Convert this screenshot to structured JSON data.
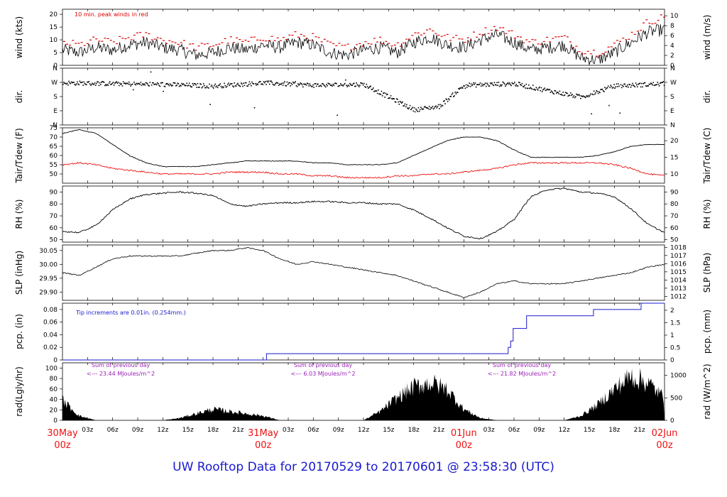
{
  "footer_title": "UW Rooftop Data for 20170529  to  20170601 @ 23:58:30  (UTC)",
  "time_axis": {
    "hour_ticks": [
      "03z",
      "06z",
      "09z",
      "12z",
      "15z",
      "18z",
      "21z",
      "03z",
      "06z",
      "09z",
      "12z",
      "15z",
      "18z",
      "21z",
      "03z",
      "06z",
      "09z",
      "12z",
      "15z",
      "18z",
      "21z"
    ],
    "days": [
      {
        "date": "30May",
        "hour": "00z"
      },
      {
        "date": "31May",
        "hour": "00z"
      },
      {
        "date": "01Jun",
        "hour": "00z"
      },
      {
        "date": "02Jun",
        "hour": "00z"
      }
    ]
  },
  "colors": {
    "line": "#000000",
    "peak": "#dd0000",
    "dew": "#ee1111",
    "precip": "#1a1acc",
    "annot_precip": "#1a1acc",
    "annot_rad": "#9a1fb5",
    "title": "#1a1ad0",
    "days": "#ee1111"
  },
  "panels": {
    "wind": {
      "ylabel_left": "wind (kts)",
      "ylabel_right": "wind (m/s)",
      "ticks_left": [
        "0",
        "5",
        "10",
        "15",
        "20"
      ],
      "ticks_right": [
        "0",
        "2",
        "4",
        "6",
        "8",
        "10"
      ],
      "note": "10 min. peak winds in red"
    },
    "dir": {
      "ylabel_left": "dir.",
      "ylabel_right": "dir.",
      "ticks": [
        "N",
        "E",
        "S",
        "W",
        "N"
      ]
    },
    "temp": {
      "ylabel_left": "Tair/Tdew (F)",
      "ylabel_right": "Tair/Tdew (C)",
      "ticks_left": [
        "50",
        "55",
        "60",
        "65",
        "70",
        "75"
      ],
      "ticks_right": [
        "10",
        "15",
        "20"
      ]
    },
    "rh": {
      "ylabel_left": "RH (%)",
      "ylabel_right": "RH (%)",
      "ticks": [
        "50",
        "60",
        "70",
        "80",
        "90"
      ]
    },
    "slp": {
      "ylabel_left": "SLP (inHg)",
      "ylabel_right": "SLP (hPa)",
      "ticks_left": [
        "29.90",
        "29.95",
        "30.00",
        "30.05"
      ],
      "ticks_right": [
        "1012",
        "1013",
        "1014",
        "1015",
        "1016",
        "1017",
        "1018"
      ]
    },
    "pcp": {
      "ylabel_left": "pcp. (in)",
      "ylabel_right": "pcp. (mm)",
      "ticks_left": [
        "0",
        "0.02",
        "0.04",
        "0.06",
        "0.08"
      ],
      "ticks_right": [
        "0",
        "0.5",
        "1",
        "1.5",
        "2"
      ],
      "note": "Tip increments are 0.01in. (0.254mm.)"
    },
    "rad": {
      "ylabel_left": "rad(Lgly/hr)",
      "ylabel_right": "rad (W/m^2)",
      "ticks_left": [
        "0",
        "20",
        "40",
        "60",
        "80",
        "100"
      ],
      "ticks_right": [
        "0",
        "500",
        "1000"
      ],
      "sums": [
        {
          "label": "Sum of previous day",
          "value": "<--- 23.44 MJoules/m^2"
        },
        {
          "label": "Sum of previous day",
          "value": "<--- 6.03 MJoules/m^2"
        },
        {
          "label": "Sum of previous day",
          "value": "<--- 21.82 MJoules/m^2"
        }
      ]
    }
  },
  "chart_data": [
    {
      "type": "line",
      "title": "",
      "ylabel": "wind (kts)",
      "y2label": "wind (m/s)",
      "ylim": [
        0,
        22
      ],
      "x_unit": "hours since 30May 00z",
      "series": [
        {
          "name": "",
          "x": [
            0,
            2,
            4,
            6,
            8,
            10,
            12,
            14,
            16,
            18,
            20,
            22,
            24,
            26,
            28,
            30,
            32,
            34,
            36,
            38,
            40,
            42,
            44,
            46,
            48,
            50,
            52,
            54,
            56,
            58,
            60,
            62,
            64,
            66,
            68,
            70,
            72
          ],
          "values": [
            6,
            5,
            7,
            6,
            8,
            9,
            7,
            6,
            4,
            5,
            7,
            6,
            8,
            7,
            9,
            8,
            5,
            4,
            6,
            7,
            5,
            9,
            11,
            8,
            7,
            10,
            12,
            9,
            6,
            7,
            8,
            3,
            2,
            5,
            9,
            13,
            14
          ]
        },
        {
          "name": "10 min. peak winds in red",
          "x": [
            0,
            2,
            4,
            6,
            8,
            10,
            12,
            14,
            16,
            18,
            20,
            22,
            24,
            26,
            28,
            30,
            32,
            34,
            36,
            38,
            40,
            42,
            44,
            46,
            48,
            50,
            52,
            54,
            56,
            58,
            60,
            62,
            64,
            66,
            68,
            70,
            72
          ],
          "values": [
            9,
            8,
            10,
            9,
            11,
            12,
            10,
            9,
            7,
            8,
            10,
            9,
            11,
            10,
            12,
            11,
            8,
            7,
            9,
            10,
            8,
            12,
            14,
            11,
            10,
            13,
            15,
            12,
            9,
            10,
            11,
            6,
            5,
            8,
            12,
            17,
            19
          ]
        }
      ]
    },
    {
      "type": "scatter",
      "title": "",
      "ylabel": "dir.",
      "ytick_labels": [
        "N",
        "E",
        "S",
        "W",
        "N"
      ],
      "note": "mostly W to S, excursions toward E near 20-22z 31May",
      "series": [
        {
          "name": "",
          "x": [
            0,
            6,
            12,
            18,
            24,
            30,
            36,
            42,
            45,
            48,
            54,
            60,
            62,
            66,
            72
          ],
          "values": [
            270,
            265,
            260,
            250,
            270,
            255,
            260,
            100,
            120,
            255,
            265,
            200,
            180,
            250,
            265
          ]
        }
      ]
    },
    {
      "type": "line",
      "title": "",
      "ylabel": "Tair/Tdew (F)",
      "y2label": "Tair/Tdew (C)",
      "ylim": [
        45,
        75
      ],
      "series": [
        {
          "name": "",
          "x": [
            0,
            2,
            4,
            6,
            8,
            10,
            12,
            14,
            16,
            18,
            20,
            22,
            24,
            26,
            28,
            30,
            32,
            34,
            36,
            38,
            40,
            42,
            44,
            46,
            48,
            50,
            52,
            54,
            56,
            58,
            60,
            62,
            64,
            66,
            68,
            70,
            72
          ],
          "values": [
            72,
            74,
            72,
            66,
            60,
            56,
            54,
            54,
            54,
            55,
            56,
            57,
            57,
            57,
            57,
            56,
            56,
            55,
            55,
            55,
            56,
            60,
            64,
            68,
            70,
            70,
            68,
            63,
            59,
            59,
            59,
            59,
            60,
            62,
            65,
            66,
            66
          ]
        },
        {
          "name": "",
          "x": [
            0,
            2,
            4,
            6,
            8,
            10,
            12,
            14,
            16,
            18,
            20,
            22,
            24,
            26,
            28,
            30,
            32,
            34,
            36,
            38,
            40,
            42,
            44,
            46,
            48,
            50,
            52,
            54,
            56,
            58,
            60,
            62,
            64,
            66,
            68,
            70,
            72
          ],
          "values": [
            55,
            56,
            55,
            53,
            52,
            51,
            50,
            50,
            50,
            50,
            51,
            51,
            51,
            50,
            50,
            49,
            49,
            48,
            48,
            48,
            49,
            49,
            50,
            50,
            51,
            52,
            53,
            55,
            56,
            56,
            56,
            56,
            56,
            55,
            53,
            50,
            49
          ]
        }
      ]
    },
    {
      "type": "line",
      "title": "",
      "ylabel": "RH (%)",
      "ylim": [
        48,
        95
      ],
      "series": [
        {
          "name": "",
          "x": [
            0,
            2,
            4,
            6,
            8,
            10,
            12,
            14,
            16,
            18,
            20,
            22,
            24,
            26,
            28,
            30,
            32,
            34,
            36,
            38,
            40,
            42,
            44,
            46,
            48,
            50,
            52,
            54,
            56,
            58,
            60,
            62,
            64,
            66,
            68,
            70,
            72
          ],
          "values": [
            57,
            56,
            62,
            75,
            84,
            88,
            89,
            90,
            89,
            87,
            80,
            78,
            80,
            81,
            81,
            82,
            82,
            81,
            81,
            80,
            80,
            75,
            68,
            60,
            53,
            51,
            57,
            67,
            86,
            92,
            93,
            90,
            89,
            86,
            76,
            63,
            56
          ]
        }
      ]
    },
    {
      "type": "line",
      "title": "",
      "ylabel": "SLP (inHg)",
      "y2label": "SLP (hPa)",
      "ylim": [
        29.87,
        30.07
      ],
      "series": [
        {
          "name": "",
          "x": [
            0,
            2,
            4,
            6,
            8,
            10,
            12,
            14,
            16,
            18,
            20,
            22,
            24,
            26,
            28,
            30,
            32,
            34,
            36,
            38,
            40,
            42,
            44,
            46,
            48,
            50,
            52,
            54,
            56,
            58,
            60,
            62,
            64,
            66,
            68,
            70,
            72
          ],
          "values": [
            29.97,
            29.96,
            29.99,
            30.02,
            30.03,
            30.03,
            30.03,
            30.03,
            30.04,
            30.05,
            30.05,
            30.06,
            30.05,
            30.02,
            30.0,
            30.01,
            30.0,
            29.99,
            29.98,
            29.97,
            29.96,
            29.94,
            29.92,
            29.9,
            29.88,
            29.9,
            29.93,
            29.94,
            29.93,
            29.93,
            29.93,
            29.94,
            29.95,
            29.96,
            29.97,
            29.99,
            30.0
          ]
        }
      ]
    },
    {
      "type": "line",
      "title": "",
      "ylabel": "pcp. (in)",
      "y2label": "pcp. (mm)",
      "ylim": [
        0,
        0.09
      ],
      "note": "Tip increments are 0.01in. (0.254mm.)",
      "series": [
        {
          "name": "",
          "x": [
            0,
            24.4,
            24.4,
            53.3,
            53.3,
            53.6,
            53.6,
            53.9,
            53.9,
            55.5,
            55.5,
            63.5,
            63.5,
            69.2,
            69.2,
            72
          ],
          "values": [
            0,
            0,
            0.01,
            0.01,
            0.02,
            0.02,
            0.03,
            0.03,
            0.05,
            0.05,
            0.07,
            0.07,
            0.08,
            0.08,
            0.09,
            0.09
          ]
        }
      ]
    },
    {
      "type": "area",
      "title": "",
      "ylabel": "rad(Lgly/hr)",
      "y2label": "rad (W/m^2)",
      "ylim": [
        0,
        110
      ],
      "series": [
        {
          "name": "",
          "x": [
            0,
            2,
            4,
            12,
            14,
            16,
            18,
            20,
            22,
            24,
            26,
            36,
            38,
            40,
            42,
            44,
            46,
            48,
            50,
            52,
            60,
            62,
            64,
            66,
            68,
            70,
            72
          ],
          "values": [
            45,
            10,
            0,
            0,
            5,
            15,
            25,
            20,
            15,
            10,
            0,
            0,
            20,
            50,
            75,
            85,
            70,
            25,
            5,
            0,
            0,
            10,
            35,
            70,
            100,
            85,
            50
          ]
        }
      ]
    }
  ]
}
